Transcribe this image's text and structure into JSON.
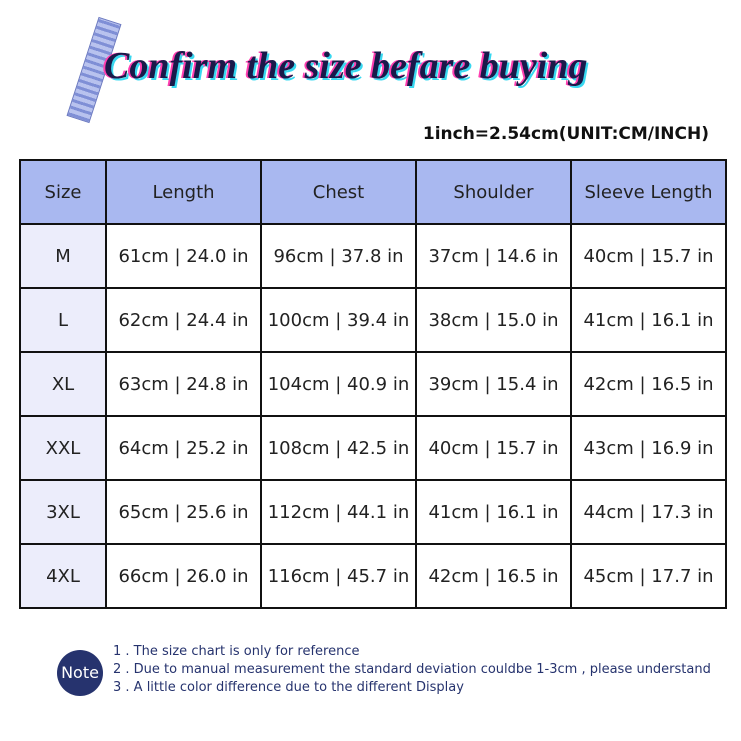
{
  "header": {
    "title": "Confirm the size befare buying",
    "unit": "1inch=2.54cm(UNIT:CM/INCH)"
  },
  "table": {
    "header": [
      "Size",
      "Length",
      "Chest",
      "Shoulder",
      "Sleeve Length"
    ],
    "rows": [
      [
        "M",
        "61cm | 24.0 in",
        "96cm | 37.8 in",
        "37cm | 14.6 in",
        "40cm | 15.7 in"
      ],
      [
        "L",
        "62cm | 24.4 in",
        "100cm | 39.4 in",
        "38cm | 15.0 in",
        "41cm | 16.1 in"
      ],
      [
        "XL",
        "63cm | 24.8 in",
        "104cm | 40.9 in",
        "39cm | 15.4 in",
        "42cm | 16.5 in"
      ],
      [
        "XXL",
        "64cm | 25.2 in",
        "108cm | 42.5 in",
        "40cm | 15.7 in",
        "43cm | 16.9 in"
      ],
      [
        "3XL",
        "65cm | 25.6 in",
        "112cm | 44.1 in",
        "41cm | 16.1 in",
        "44cm | 17.3 in"
      ],
      [
        "4XL",
        "66cm | 26.0 in",
        "116cm | 45.7 in",
        "42cm | 16.5 in",
        "45cm | 17.7 in"
      ]
    ]
  },
  "note": {
    "label": "Note",
    "lines": [
      "1 . The size chart is only for reference",
      "2 . Due to manual measurement the standard deviation couldbe 1-3cm , please understand",
      "3 . A little color difference due to the different Display"
    ]
  }
}
